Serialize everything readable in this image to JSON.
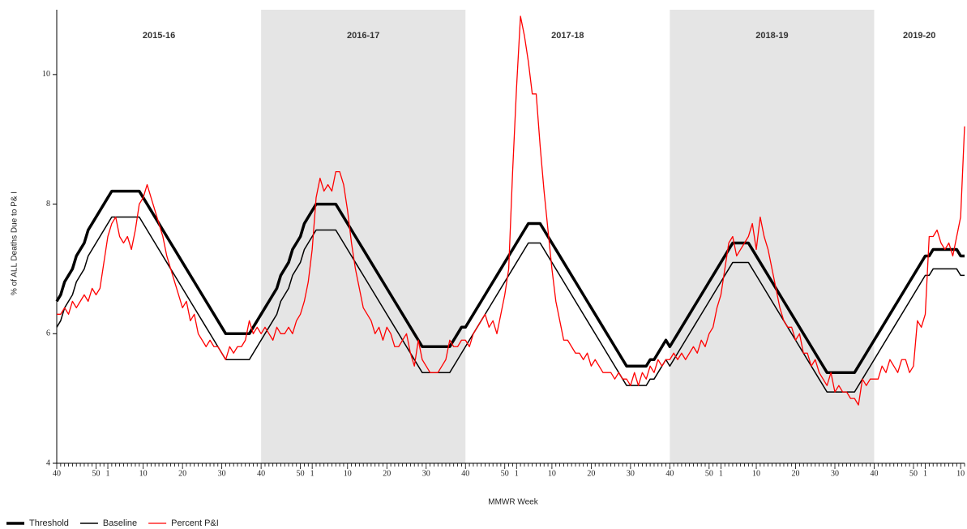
{
  "chart_data": {
    "type": "line",
    "y_label": "% of ALL Deaths Due to P& I",
    "x_label": "MMWR Week",
    "ylim": [
      4,
      11
    ],
    "yticks": [
      4,
      6,
      8,
      10
    ],
    "seasons": [
      {
        "label": "2015-16",
        "shaded": false
      },
      {
        "label": "2016-17",
        "shaded": true
      },
      {
        "label": "2017-18",
        "shaded": false
      },
      {
        "label": "2018-19",
        "shaded": true
      },
      {
        "label": "2019-20",
        "shaded": false
      }
    ],
    "shade_color": "#e5e5e5",
    "categories": [
      "40",
      null,
      null,
      null,
      null,
      null,
      null,
      null,
      null,
      null,
      "50",
      null,
      null,
      "1",
      null,
      null,
      null,
      null,
      null,
      null,
      null,
      null,
      "10",
      null,
      null,
      null,
      null,
      null,
      null,
      null,
      null,
      null,
      "20",
      null,
      null,
      null,
      null,
      null,
      null,
      null,
      null,
      null,
      "30",
      null,
      null,
      null,
      null,
      null,
      null,
      null,
      null,
      null,
      "40",
      null,
      null,
      null,
      null,
      null,
      null,
      null,
      null,
      null,
      "50",
      null,
      null,
      "1",
      null,
      null,
      null,
      null,
      null,
      null,
      null,
      null,
      "10",
      null,
      null,
      null,
      null,
      null,
      null,
      null,
      null,
      null,
      "20",
      null,
      null,
      null,
      null,
      null,
      null,
      null,
      null,
      null,
      "30",
      null,
      null,
      null,
      null,
      null,
      null,
      null,
      null,
      null,
      "40",
      null,
      null,
      null,
      null,
      null,
      null,
      null,
      null,
      null,
      "50",
      null,
      null,
      "1",
      null,
      null,
      null,
      null,
      null,
      null,
      null,
      null,
      "10",
      null,
      null,
      null,
      null,
      null,
      null,
      null,
      null,
      null,
      "20",
      null,
      null,
      null,
      null,
      null,
      null,
      null,
      null,
      null,
      "30",
      null,
      null,
      null,
      null,
      null,
      null,
      null,
      null,
      null,
      "40",
      null,
      null,
      null,
      null,
      null,
      null,
      null,
      null,
      null,
      "50",
      null,
      null,
      "1",
      null,
      null,
      null,
      null,
      null,
      null,
      null,
      null,
      "10",
      null,
      null,
      null,
      null,
      null,
      null,
      null,
      null,
      null,
      "20",
      null,
      null,
      null,
      null,
      null,
      null,
      null,
      null,
      null,
      "30",
      null,
      null,
      null,
      null,
      null,
      null,
      null,
      null,
      null,
      "40",
      null,
      null,
      null,
      null,
      null,
      null,
      null,
      null,
      null,
      "50",
      null,
      null,
      "1",
      null,
      null,
      null,
      null,
      null,
      null,
      null,
      null,
      "10",
      null
    ],
    "series": [
      {
        "name": "Threshold",
        "color": "#000000",
        "values": [
          6.5,
          6.6,
          6.8,
          6.9,
          7.0,
          7.2,
          7.3,
          7.4,
          7.6,
          7.7,
          7.8,
          7.9,
          8.0,
          8.1,
          8.2,
          8.2,
          8.2,
          8.2,
          8.2,
          8.2,
          8.2,
          8.2,
          8.1,
          8.0,
          7.9,
          7.8,
          7.7,
          7.6,
          7.5,
          7.4,
          7.3,
          7.2,
          7.1,
          7.0,
          6.9,
          6.8,
          6.7,
          6.6,
          6.5,
          6.4,
          6.3,
          6.2,
          6.1,
          6.0,
          6.0,
          6.0,
          6.0,
          6.0,
          6.0,
          6.0,
          6.1,
          6.2,
          6.3,
          6.4,
          6.5,
          6.6,
          6.7,
          6.9,
          7.0,
          7.1,
          7.3,
          7.4,
          7.5,
          7.7,
          7.8,
          7.9,
          8.0,
          8.0,
          8.0,
          8.0,
          8.0,
          8.0,
          7.9,
          7.8,
          7.7,
          7.6,
          7.5,
          7.4,
          7.3,
          7.2,
          7.1,
          7.0,
          6.9,
          6.8,
          6.7,
          6.6,
          6.5,
          6.4,
          6.3,
          6.2,
          6.1,
          6.0,
          5.9,
          5.8,
          5.8,
          5.8,
          5.8,
          5.8,
          5.8,
          5.8,
          5.8,
          5.9,
          6.0,
          6.1,
          6.1,
          6.2,
          6.3,
          6.4,
          6.5,
          6.6,
          6.7,
          6.8,
          6.9,
          7.0,
          7.1,
          7.2,
          7.3,
          7.4,
          7.5,
          7.6,
          7.7,
          7.7,
          7.7,
          7.7,
          7.6,
          7.5,
          7.4,
          7.3,
          7.2,
          7.1,
          7.0,
          6.9,
          6.8,
          6.7,
          6.6,
          6.5,
          6.4,
          6.3,
          6.2,
          6.1,
          6.0,
          5.9,
          5.8,
          5.7,
          5.6,
          5.5,
          5.5,
          5.5,
          5.5,
          5.5,
          5.5,
          5.6,
          5.6,
          5.7,
          5.8,
          5.9,
          5.8,
          5.9,
          6.0,
          6.1,
          6.2,
          6.3,
          6.4,
          6.5,
          6.6,
          6.7,
          6.8,
          6.9,
          7.0,
          7.1,
          7.2,
          7.3,
          7.4,
          7.4,
          7.4,
          7.4,
          7.4,
          7.3,
          7.2,
          7.1,
          7.0,
          6.9,
          6.8,
          6.7,
          6.6,
          6.5,
          6.4,
          6.3,
          6.2,
          6.1,
          6.0,
          5.9,
          5.8,
          5.7,
          5.6,
          5.5,
          5.4,
          5.4,
          5.4,
          5.4,
          5.4,
          5.4,
          5.4,
          5.4,
          5.5,
          5.6,
          5.7,
          5.8,
          5.9,
          6.0,
          6.1,
          6.2,
          6.3,
          6.4,
          6.5,
          6.6,
          6.7,
          6.8,
          6.9,
          7.0,
          7.1,
          7.2,
          7.2,
          7.3,
          7.3,
          7.3,
          7.3,
          7.3,
          7.3,
          7.3,
          7.2,
          7.2
        ]
      },
      {
        "name": "Baseline",
        "color": "#000000",
        "values": [
          6.1,
          6.2,
          6.4,
          6.5,
          6.6,
          6.8,
          6.9,
          7.0,
          7.2,
          7.3,
          7.4,
          7.5,
          7.6,
          7.7,
          7.8,
          7.8,
          7.8,
          7.8,
          7.8,
          7.8,
          7.8,
          7.8,
          7.7,
          7.6,
          7.5,
          7.4,
          7.3,
          7.2,
          7.1,
          7.0,
          6.9,
          6.8,
          6.7,
          6.6,
          6.5,
          6.4,
          6.3,
          6.2,
          6.1,
          6.0,
          5.9,
          5.8,
          5.7,
          5.6,
          5.6,
          5.6,
          5.6,
          5.6,
          5.6,
          5.6,
          5.7,
          5.8,
          5.9,
          6.0,
          6.1,
          6.2,
          6.3,
          6.5,
          6.6,
          6.7,
          6.9,
          7.0,
          7.1,
          7.3,
          7.4,
          7.5,
          7.6,
          7.6,
          7.6,
          7.6,
          7.6,
          7.6,
          7.5,
          7.4,
          7.3,
          7.2,
          7.1,
          7.0,
          6.9,
          6.8,
          6.7,
          6.6,
          6.5,
          6.4,
          6.3,
          6.2,
          6.1,
          6.0,
          5.9,
          5.8,
          5.7,
          5.6,
          5.5,
          5.4,
          5.4,
          5.4,
          5.4,
          5.4,
          5.4,
          5.4,
          5.4,
          5.5,
          5.6,
          5.7,
          5.8,
          5.9,
          6.0,
          6.1,
          6.2,
          6.3,
          6.4,
          6.5,
          6.6,
          6.7,
          6.8,
          6.9,
          7.0,
          7.1,
          7.2,
          7.3,
          7.4,
          7.4,
          7.4,
          7.4,
          7.3,
          7.2,
          7.1,
          7.0,
          6.9,
          6.8,
          6.7,
          6.6,
          6.5,
          6.4,
          6.3,
          6.2,
          6.1,
          6.0,
          5.9,
          5.8,
          5.7,
          5.6,
          5.5,
          5.4,
          5.3,
          5.2,
          5.2,
          5.2,
          5.2,
          5.2,
          5.2,
          5.3,
          5.3,
          5.4,
          5.5,
          5.6,
          5.5,
          5.6,
          5.7,
          5.8,
          5.9,
          6.0,
          6.1,
          6.2,
          6.3,
          6.4,
          6.5,
          6.6,
          6.7,
          6.8,
          6.9,
          7.0,
          7.1,
          7.1,
          7.1,
          7.1,
          7.1,
          7.0,
          6.9,
          6.8,
          6.7,
          6.6,
          6.5,
          6.4,
          6.3,
          6.2,
          6.1,
          6.0,
          5.9,
          5.8,
          5.7,
          5.6,
          5.5,
          5.4,
          5.3,
          5.2,
          5.1,
          5.1,
          5.1,
          5.1,
          5.1,
          5.1,
          5.1,
          5.1,
          5.2,
          5.3,
          5.4,
          5.5,
          5.6,
          5.7,
          5.8,
          5.9,
          6.0,
          6.1,
          6.2,
          6.3,
          6.4,
          6.5,
          6.6,
          6.7,
          6.8,
          6.9,
          6.9,
          7.0,
          7.0,
          7.0,
          7.0,
          7.0,
          7.0,
          7.0,
          6.9,
          6.9
        ]
      },
      {
        "name": "Percent P&I",
        "color": "#ff0000",
        "values": [
          6.3,
          6.3,
          6.4,
          6.3,
          6.5,
          6.4,
          6.5,
          6.6,
          6.5,
          6.7,
          6.6,
          6.7,
          7.1,
          7.5,
          7.7,
          7.8,
          7.5,
          7.4,
          7.5,
          7.3,
          7.6,
          8.0,
          8.1,
          8.3,
          8.1,
          7.9,
          7.7,
          7.5,
          7.2,
          7.0,
          6.8,
          6.6,
          6.4,
          6.5,
          6.2,
          6.3,
          6.0,
          5.9,
          5.8,
          5.9,
          5.8,
          5.8,
          5.7,
          5.6,
          5.8,
          5.7,
          5.8,
          5.8,
          5.9,
          6.2,
          6.0,
          6.1,
          6.0,
          6.1,
          6.0,
          5.9,
          6.1,
          6.0,
          6.0,
          6.1,
          6.0,
          6.2,
          6.3,
          6.5,
          6.8,
          7.3,
          8.1,
          8.4,
          8.2,
          8.3,
          8.2,
          8.5,
          8.5,
          8.3,
          7.9,
          7.4,
          7.0,
          6.7,
          6.4,
          6.3,
          6.2,
          6.0,
          6.1,
          5.9,
          6.1,
          6.0,
          5.8,
          5.8,
          5.9,
          6.0,
          5.7,
          5.5,
          5.9,
          5.6,
          5.5,
          5.4,
          5.4,
          5.4,
          5.5,
          5.6,
          5.9,
          5.8,
          5.8,
          5.9,
          5.9,
          5.8,
          6.0,
          6.1,
          6.2,
          6.3,
          6.1,
          6.2,
          6.0,
          6.3,
          6.6,
          7.0,
          8.5,
          9.8,
          10.9,
          10.6,
          10.2,
          9.7,
          9.7,
          8.9,
          8.2,
          7.6,
          7.0,
          6.5,
          6.2,
          5.9,
          5.9,
          5.8,
          5.7,
          5.7,
          5.6,
          5.7,
          5.5,
          5.6,
          5.5,
          5.4,
          5.4,
          5.4,
          5.3,
          5.4,
          5.3,
          5.3,
          5.2,
          5.4,
          5.2,
          5.4,
          5.3,
          5.5,
          5.4,
          5.6,
          5.5,
          5.6,
          5.6,
          5.7,
          5.6,
          5.7,
          5.6,
          5.7,
          5.8,
          5.7,
          5.9,
          5.8,
          6.0,
          6.1,
          6.4,
          6.6,
          7.0,
          7.4,
          7.5,
          7.2,
          7.3,
          7.4,
          7.5,
          7.7,
          7.3,
          7.8,
          7.5,
          7.3,
          7.0,
          6.7,
          6.4,
          6.2,
          6.1,
          6.1,
          5.9,
          6.0,
          5.7,
          5.7,
          5.5,
          5.6,
          5.4,
          5.3,
          5.2,
          5.4,
          5.1,
          5.2,
          5.1,
          5.1,
          5.0,
          5.0,
          4.9,
          5.3,
          5.2,
          5.3,
          5.3,
          5.3,
          5.5,
          5.4,
          5.6,
          5.5,
          5.4,
          5.6,
          5.6,
          5.4,
          5.5,
          6.2,
          6.1,
          6.3,
          7.5,
          7.5,
          7.6,
          7.4,
          7.3,
          7.4,
          7.2,
          7.5,
          7.8,
          9.2
        ]
      }
    ]
  }
}
